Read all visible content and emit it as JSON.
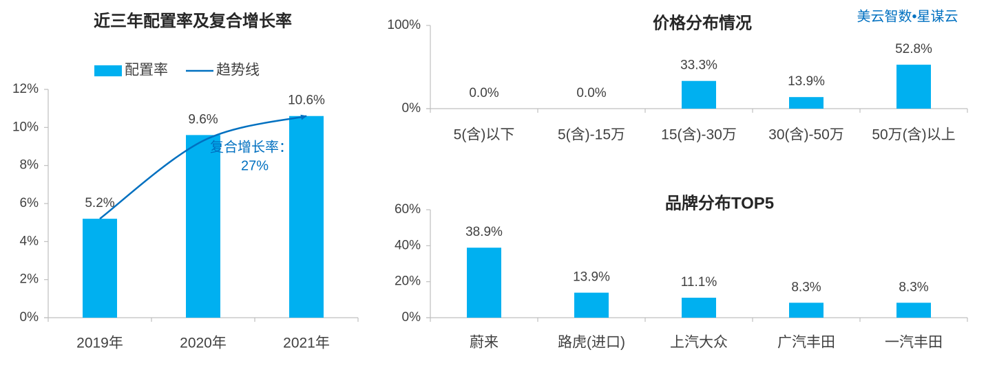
{
  "watermark": "美云智数•星谋云",
  "chart_data": [
    {
      "type": "bar",
      "title": "近三年配置率及复合增长率",
      "legend": "top",
      "categories": [
        "2019年",
        "2020年",
        "2021年"
      ],
      "series": [
        {
          "name": "配置率",
          "type": "bar",
          "color": "#00b0f0",
          "values": [
            5.2,
            9.6,
            10.6
          ],
          "value_labels": [
            "5.2%",
            "9.6%",
            "10.6%"
          ]
        },
        {
          "name": "趋势线",
          "type": "line",
          "color": "#0070c0",
          "values": [
            5.2,
            9.3,
            10.6
          ]
        }
      ],
      "annotation": [
        "复合增长率：",
        "27%"
      ],
      "ylim": [
        0,
        12
      ],
      "yticks": [
        {
          "value": 0,
          "label": "0%"
        },
        {
          "value": 2,
          "label": "2%"
        },
        {
          "value": 4,
          "label": "4%"
        },
        {
          "value": 6,
          "label": "6%"
        },
        {
          "value": 8,
          "label": "8%"
        },
        {
          "value": 10,
          "label": "10%"
        },
        {
          "value": 12,
          "label": "12%"
        }
      ],
      "grid": false
    },
    {
      "type": "bar",
      "title": "价格分布情况",
      "color": "#00b0f0",
      "categories": [
        "5(含)以下",
        "5(含)-15万",
        "15(含)-30万",
        "30(含)-50万",
        "50万(含)以上"
      ],
      "values": [
        0,
        0,
        33.3,
        13.9,
        52.8
      ],
      "value_labels": [
        "0.0%",
        "0.0%",
        "33.3%",
        "13.9%",
        "52.8%"
      ],
      "ylim": [
        0,
        100
      ],
      "yticks": [
        {
          "value": 0,
          "label": "0%"
        },
        {
          "value": 100,
          "label": "100%"
        }
      ],
      "grid": false
    },
    {
      "type": "bar",
      "title": "品牌分布TOP5",
      "color": "#00b0f0",
      "categories": [
        "蔚来",
        "路虎(进口)",
        "上汽大众",
        "广汽丰田",
        "一汽丰田"
      ],
      "values": [
        38.9,
        13.9,
        11.1,
        8.3,
        8.3
      ],
      "value_labels": [
        "38.9%",
        "13.9%",
        "11.1%",
        "8.3%",
        "8.3%"
      ],
      "ylim": [
        0,
        60
      ],
      "yticks": [
        {
          "value": 0,
          "label": "0%"
        },
        {
          "value": 20,
          "label": "20%"
        },
        {
          "value": 40,
          "label": "40%"
        },
        {
          "value": 60,
          "label": "60%"
        }
      ],
      "grid": false
    }
  ]
}
